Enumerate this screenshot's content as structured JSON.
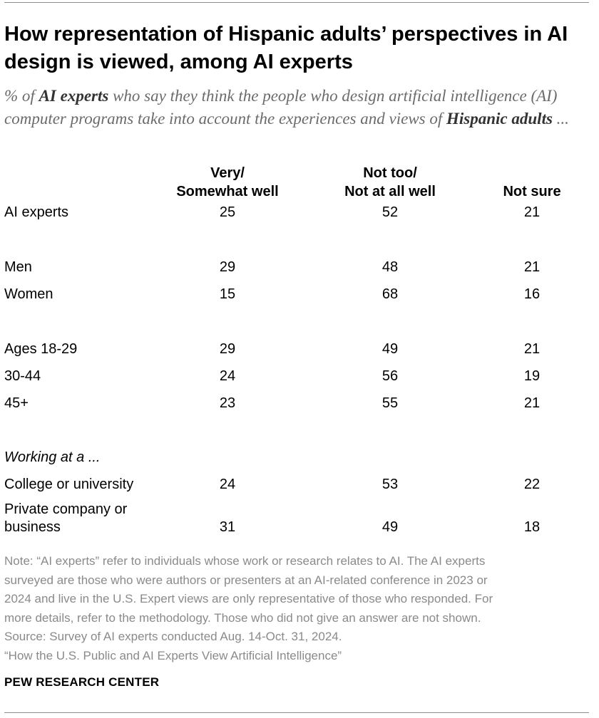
{
  "chart_data": {
    "type": "table",
    "title": "How representation of Hispanic adults’ perspectives in AI design is viewed, among AI experts",
    "subtitle": {
      "prefix": "% of ",
      "bold1": "AI experts",
      "middle": " who say they think the people who design artificial intelligence (AI) computer programs take into account the experiences and views of ",
      "bold2": "Hispanic adults",
      "suffix": " ..."
    },
    "columns": [
      {
        "line1": "Very/",
        "line2": "Somewhat well"
      },
      {
        "line1": "Not too/",
        "line2": "Not at all well"
      },
      {
        "line1": "",
        "line2": "Not sure"
      }
    ],
    "rows": [
      {
        "label": "AI experts",
        "values": [
          25,
          52,
          21
        ]
      },
      {
        "label": "Men",
        "values": [
          29,
          48,
          21
        ]
      },
      {
        "label": "Women",
        "values": [
          15,
          68,
          16
        ]
      },
      {
        "label": "Ages 18-29",
        "values": [
          29,
          49,
          21
        ]
      },
      {
        "label": "30-44",
        "values": [
          24,
          56,
          19
        ]
      },
      {
        "label": "45+",
        "values": [
          23,
          55,
          21
        ]
      },
      {
        "label": "College or university",
        "values": [
          24,
          53,
          22
        ]
      },
      {
        "label_line1": "Private company or",
        "label_line2": "business",
        "values": [
          31,
          49,
          18
        ]
      }
    ],
    "group_label": "Working at a ..."
  },
  "note": {
    "line1": "Note: “AI experts” refer to individuals whose work or research relates to AI. The AI experts",
    "line2": "surveyed are those who were authors or presenters at an AI-related conference in 2023 or",
    "line3": "2024 and live in the U.S. Expert views are only representative of those who responded. For",
    "line4": "more details, refer to the methodology. Those who did not give an answer are not shown.",
    "source": "Source: Survey of AI experts conducted Aug. 14-Oct. 31, 2024.",
    "report": "“How the U.S. Public and AI Experts View Artificial Intelligence”"
  },
  "brand": "PEW RESEARCH CENTER"
}
